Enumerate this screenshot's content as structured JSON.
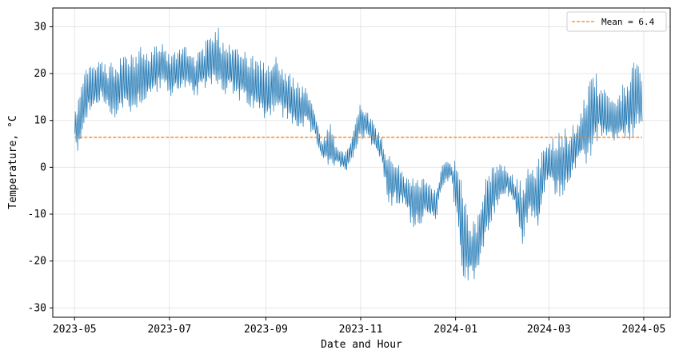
{
  "chart_data": {
    "type": "line",
    "xlabel": "Date and Hour",
    "ylabel": "Temperature, °C",
    "x_ticks": [
      "2023-05",
      "2023-07",
      "2023-09",
      "2023-11",
      "2024-01",
      "2024-03",
      "2024-05"
    ],
    "y_ticks": [
      -30,
      -20,
      -10,
      0,
      10,
      20,
      30
    ],
    "xlim": [
      "2023-04-17",
      "2024-05-18"
    ],
    "ylim": [
      -32,
      34
    ],
    "grid": true,
    "legend_position": "upper right",
    "colors": {
      "series": "#1f77b4",
      "mean": "#ff7f0e"
    },
    "series": [
      {
        "name": "",
        "x": [
          "2023-05-01",
          "2023-05-03",
          "2023-05-06",
          "2023-05-09",
          "2023-05-13",
          "2023-05-18",
          "2023-05-23",
          "2023-05-28",
          "2023-06-02",
          "2023-06-07",
          "2023-06-12",
          "2023-06-17",
          "2023-06-22",
          "2023-06-27",
          "2023-07-02",
          "2023-07-07",
          "2023-07-12",
          "2023-07-17",
          "2023-07-22",
          "2023-07-27",
          "2023-08-01",
          "2023-08-04",
          "2023-08-08",
          "2023-08-13",
          "2023-08-18",
          "2023-08-23",
          "2023-08-28",
          "2023-09-02",
          "2023-09-07",
          "2023-09-12",
          "2023-09-17",
          "2023-09-22",
          "2023-09-27",
          "2023-10-02",
          "2023-10-07",
          "2023-10-12",
          "2023-10-17",
          "2023-10-22",
          "2023-10-27",
          "2023-11-01",
          "2023-11-05",
          "2023-11-09",
          "2023-11-14",
          "2023-11-19",
          "2023-11-24",
          "2023-11-29",
          "2023-12-04",
          "2023-12-09",
          "2023-12-14",
          "2023-12-19",
          "2023-12-24",
          "2023-12-29",
          "2024-01-02",
          "2024-01-06",
          "2024-01-10",
          "2024-01-14",
          "2024-01-19",
          "2024-01-24",
          "2024-01-29",
          "2024-02-03",
          "2024-02-08",
          "2024-02-13",
          "2024-02-18",
          "2024-02-23",
          "2024-02-28",
          "2024-03-04",
          "2024-03-09",
          "2024-03-14",
          "2024-03-19",
          "2024-03-24",
          "2024-03-29",
          "2024-04-03",
          "2024-04-08",
          "2024-04-13",
          "2024-04-18",
          "2024-04-23",
          "2024-04-28",
          "2024-04-30"
        ],
        "low": [
          5,
          -2,
          6,
          8,
          10,
          12,
          9,
          8,
          10,
          9,
          11,
          12,
          14,
          15,
          13,
          15,
          14,
          13,
          14,
          16,
          15,
          14,
          13,
          12,
          11,
          10,
          9,
          8,
          10,
          8,
          7,
          6,
          7,
          5,
          2,
          -3,
          0,
          -2,
          1,
          4,
          6,
          3,
          1,
          -11,
          -10,
          -9,
          -15,
          -14,
          -12,
          -13,
          -5,
          -3,
          -15,
          -29,
          -28,
          -26,
          -20,
          -15,
          -9,
          -7,
          -10,
          -19,
          -12,
          -18,
          -5,
          -8,
          -9,
          -7,
          -2,
          -3,
          -1,
          5,
          3,
          4,
          2,
          3,
          4,
          6
        ],
        "high": [
          12,
          15,
          18,
          22,
          22,
          24,
          22,
          23,
          25,
          24,
          26,
          25,
          26,
          27,
          24,
          26,
          27,
          24,
          26,
          28,
          31,
          27,
          28,
          27,
          25,
          24,
          23,
          22,
          24,
          22,
          20,
          18,
          17,
          13,
          5,
          10,
          4,
          3,
          8,
          15,
          12,
          10,
          7,
          3,
          2,
          -2,
          -1,
          -2,
          -3,
          -5,
          2,
          1,
          2,
          -5,
          -10,
          -12,
          -2,
          0,
          1,
          0,
          -2,
          -3,
          1,
          2,
          5,
          7,
          8,
          9,
          10,
          15,
          23,
          17,
          16,
          14,
          18,
          22,
          23,
          19
        ]
      },
      {
        "name": "Mean = 6.4",
        "y": 6.4
      }
    ]
  }
}
